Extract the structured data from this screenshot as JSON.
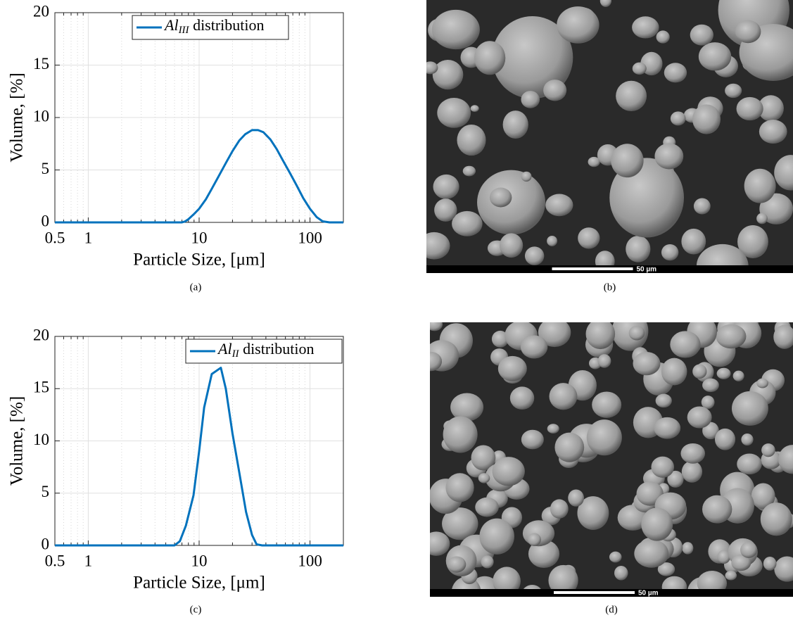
{
  "chart_data": [
    {
      "type": "line",
      "log_x": true,
      "grid": true,
      "minor_grid": true,
      "legend": "upper center",
      "xlabel": "Particle Size, [μm]",
      "ylabel": "Volume, [%]",
      "caption": "(a)",
      "xlim": [
        0.5,
        200
      ],
      "xticks": [
        0.5,
        1,
        10,
        100
      ],
      "ylim": [
        0,
        20
      ],
      "yticks": [
        0,
        5,
        10,
        15,
        20
      ],
      "x": [
        0.5,
        1,
        2,
        4,
        6,
        7,
        7.5,
        8,
        9,
        10,
        11.5,
        13,
        15,
        17.5,
        20,
        23,
        26,
        30,
        34,
        38,
        44,
        50,
        57,
        66,
        76,
        87,
        100,
        115,
        130,
        150,
        175,
        200
      ],
      "series": [
        {
          "name": "Al_{III} distribution",
          "color": "#0072bd",
          "values": [
            0,
            0,
            0,
            0,
            0,
            0,
            0.1,
            0.3,
            0.8,
            1.3,
            2.2,
            3.2,
            4.4,
            5.7,
            6.8,
            7.8,
            8.4,
            8.8,
            8.8,
            8.6,
            7.9,
            7.0,
            5.9,
            4.7,
            3.5,
            2.3,
            1.3,
            0.5,
            0.1,
            0,
            0,
            0
          ]
        }
      ]
    },
    {
      "type": "line",
      "log_x": true,
      "grid": true,
      "minor_grid": true,
      "legend": "upper right",
      "xlabel": "Particle Size, [μm]",
      "ylabel": "Volume, [%]",
      "caption": "(c)",
      "xlim": [
        0.5,
        200
      ],
      "xticks": [
        0.5,
        1,
        10,
        100
      ],
      "ylim": [
        0,
        20
      ],
      "yticks": [
        0,
        5,
        10,
        15,
        20
      ],
      "x": [
        0.5,
        1,
        2,
        4,
        6,
        6.7,
        7.6,
        8.9,
        10,
        11.1,
        13,
        15.7,
        17.4,
        20,
        23,
        26.5,
        30,
        33,
        37,
        50,
        100,
        200
      ],
      "series": [
        {
          "name": "Al_{II} distribution",
          "color": "#0072bd",
          "values": [
            0,
            0,
            0,
            0,
            0,
            0.4,
            1.9,
            4.8,
            9,
            13.2,
            16.4,
            17,
            15,
            10.7,
            7,
            3.2,
            1.0,
            0.1,
            0,
            0,
            0,
            0
          ]
        }
      ]
    }
  ],
  "images": [
    {
      "caption": "(b)",
      "scale_bar": "50 µm"
    },
    {
      "caption": "(d)",
      "scale_bar": "50 µm"
    }
  ]
}
